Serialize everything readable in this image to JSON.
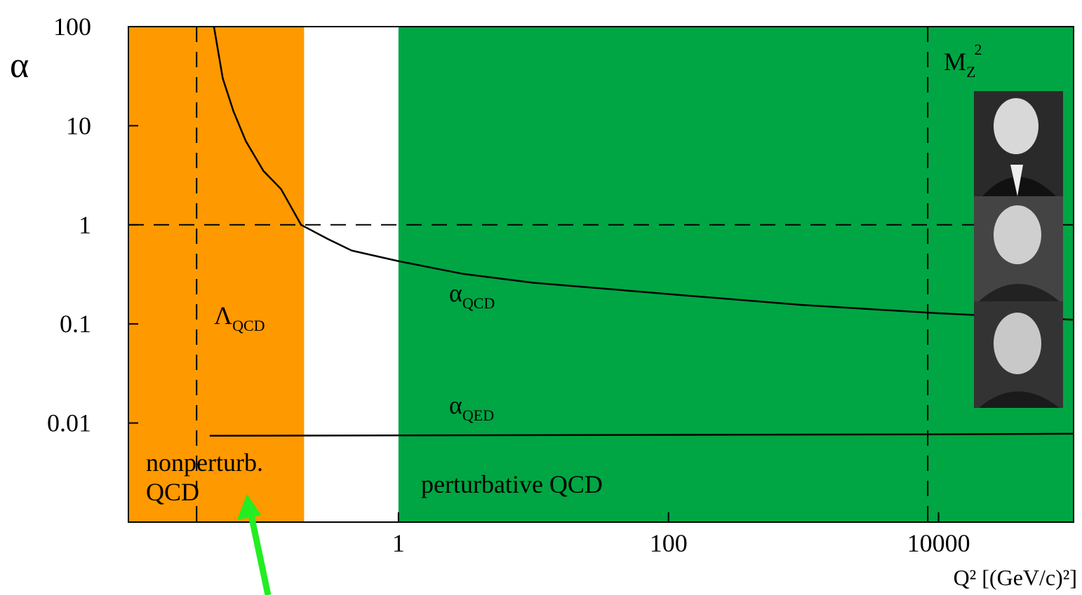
{
  "chart_data": {
    "type": "line",
    "ylabel": "α",
    "xlabel": "Q² [(GeV/c)²]",
    "xlim": [
      0.01,
      100000
    ],
    "ylim": [
      0.001,
      100
    ],
    "xscale": "log",
    "yscale": "log",
    "xticks": [
      1,
      100,
      10000
    ],
    "yticks": [
      0.01,
      0.1,
      1,
      10,
      100
    ],
    "regions": [
      {
        "from": 0.01,
        "to": 0.2,
        "color": "#ff9900"
      },
      {
        "from": 1,
        "to": 100000,
        "color": "#00a643"
      }
    ],
    "reference_lines": {
      "x": [
        0.032,
        8315
      ],
      "y": [
        1
      ]
    },
    "series": [
      {
        "color": "#000000",
        "x": [
          0.043,
          0.05,
          0.06,
          0.074,
          0.1,
          0.135,
          0.19,
          0.3,
          0.45,
          1,
          3,
          10,
          30,
          100,
          1000,
          10000,
          100000
        ],
        "values": [
          100,
          30,
          14,
          7,
          3.5,
          2.3,
          1,
          0.72,
          0.55,
          0.43,
          0.32,
          0.26,
          0.23,
          0.2,
          0.155,
          0.128,
          0.11
        ]
      },
      {
        "color": "#000000",
        "x": [
          0.04,
          1,
          100,
          10000,
          100000
        ],
        "values": [
          0.00745,
          0.0075,
          0.0076,
          0.0077,
          0.0078
        ]
      }
    ],
    "annotations": [
      {
        "text": "Λ",
        "sub": "QCD"
      },
      {
        "text": "α",
        "sub": "QCD"
      },
      {
        "text": "α",
        "sub": "QED"
      },
      {
        "text": "M",
        "sub": "Z",
        "sup": "2"
      },
      {
        "lines": [
          "nonperturb.",
          "QCD"
        ]
      },
      {
        "lines": [
          "perturbative QCD"
        ]
      }
    ]
  }
}
